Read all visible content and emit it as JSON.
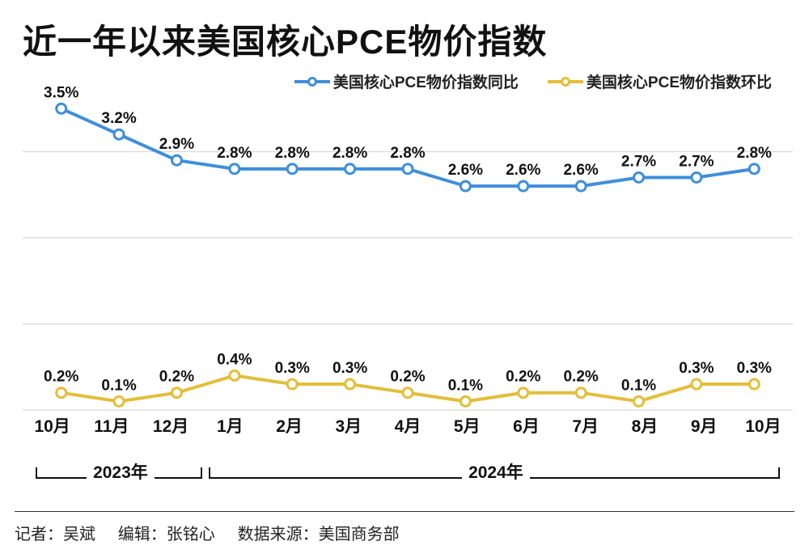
{
  "title": "近一年以来美国核心PCE物价指数",
  "legend": {
    "series_a": {
      "label": "美国核心PCE物价指数同比",
      "color": "#3f8fd9"
    },
    "series_b": {
      "label": "美国核心PCE物价指数环比",
      "color": "#e3be3a"
    }
  },
  "chart": {
    "type": "line",
    "background_color": "#ffffff",
    "grid_color": "#d9d9d9",
    "grid_lines_y": [
      0,
      1,
      2,
      3
    ],
    "ylim": [
      0,
      3.7
    ],
    "marker_radius": 6,
    "marker_fill": "#ffffff",
    "marker_stroke_width": 3,
    "line_width": 4,
    "label_font_size": 19,
    "label_font_weight": "700",
    "xlabel_font_size": 21,
    "months": [
      "10月",
      "11月",
      "12月",
      "1月",
      "2月",
      "3月",
      "4月",
      "5月",
      "6月",
      "7月",
      "8月",
      "9月",
      "10月"
    ],
    "series_a": {
      "color": "#3f8fd9",
      "values": [
        3.5,
        3.2,
        2.9,
        2.8,
        2.8,
        2.8,
        2.8,
        2.6,
        2.6,
        2.6,
        2.7,
        2.7,
        2.8
      ],
      "labels": [
        "3.5%",
        "3.2%",
        "2.9%",
        "2.8%",
        "2.8%",
        "2.8%",
        "2.8%",
        "2.6%",
        "2.6%",
        "2.6%",
        "2.7%",
        "2.7%",
        "2.8%"
      ]
    },
    "series_b": {
      "color": "#e3be3a",
      "values": [
        0.2,
        0.1,
        0.2,
        0.4,
        0.3,
        0.3,
        0.2,
        0.1,
        0.2,
        0.2,
        0.1,
        0.3,
        0.3
      ],
      "labels": [
        "0.2%",
        "0.1%",
        "0.2%",
        "0.4%",
        "0.3%",
        "0.3%",
        "0.2%",
        "0.1%",
        "0.2%",
        "0.2%",
        "0.1%",
        "0.3%",
        "0.3%"
      ]
    },
    "year_groups": [
      {
        "from_idx": 0,
        "to_idx": 2,
        "label": "2023年"
      },
      {
        "from_idx": 3,
        "to_idx": 12,
        "label": "2024年"
      }
    ]
  },
  "footer": {
    "reporter_prefix": "记者：",
    "reporter": "吴斌",
    "editor_prefix": "编辑：",
    "editor": "张铭心",
    "source_prefix": "数据来源：",
    "source": "美国商务部"
  }
}
